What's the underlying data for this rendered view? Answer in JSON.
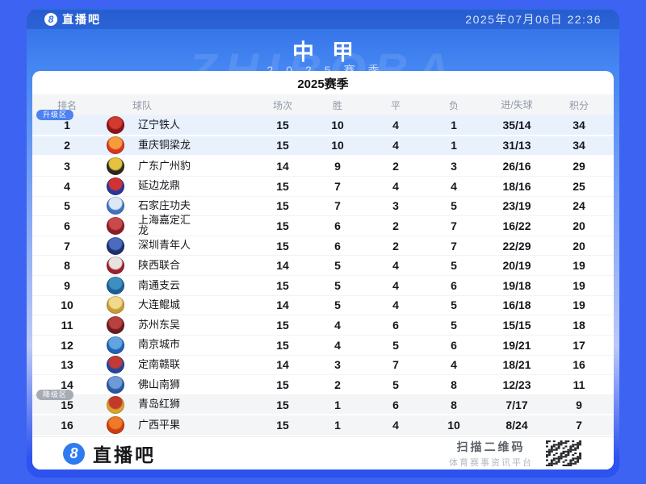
{
  "topbar": {
    "brand": "直播吧",
    "brand_glyph": "8",
    "datetime": "2025年07月06日 22:36"
  },
  "banner": {
    "title": "中甲",
    "season": "2025赛季",
    "watermark": "ZHIBOBA"
  },
  "colors": {
    "page_bg": "#3c63f1",
    "promotion_badge": "#4d82f0",
    "relegation_badge": "#a6abb4",
    "promotion_row_bg": "#e9f1fd",
    "relegation_row_bg": "#f4f5f6"
  },
  "table": {
    "title": "2025赛季",
    "columns": {
      "rank": "排名",
      "team": "球队",
      "played": "场次",
      "win": "胜",
      "draw": "平",
      "loss": "负",
      "goals": "进/失球",
      "points": "积分"
    },
    "promotion_label": "升级区",
    "relegation_label": "降级区",
    "rows": [
      {
        "rank": "1",
        "team": "辽宁铁人",
        "played": "15",
        "win": "10",
        "draw": "4",
        "loss": "1",
        "goals": "35/14",
        "points": "34",
        "zone": "promotion",
        "badge": true,
        "logo": [
          "#8f1318",
          "#d23a2e"
        ]
      },
      {
        "rank": "2",
        "team": "重庆铜梁龙",
        "played": "15",
        "win": "10",
        "draw": "4",
        "loss": "1",
        "goals": "31/13",
        "points": "34",
        "zone": "promotion",
        "badge": false,
        "logo": [
          "#d7371f",
          "#f59d3c"
        ]
      },
      {
        "rank": "3",
        "team": "广东广州豹",
        "played": "14",
        "win": "9",
        "draw": "2",
        "loss": "3",
        "goals": "26/16",
        "points": "29",
        "zone": null,
        "badge": false,
        "logo": [
          "#2b2a20",
          "#e5c33d"
        ]
      },
      {
        "rank": "4",
        "team": "延边龙鼎",
        "played": "15",
        "win": "7",
        "draw": "4",
        "loss": "4",
        "goals": "18/16",
        "points": "25",
        "zone": null,
        "badge": false,
        "logo": [
          "#27379b",
          "#cf3333"
        ]
      },
      {
        "rank": "5",
        "team": "石家庄功夫",
        "played": "15",
        "win": "7",
        "draw": "3",
        "loss": "5",
        "goals": "23/19",
        "points": "24",
        "zone": null,
        "badge": false,
        "logo": [
          "#3f74c0",
          "#dce9f5"
        ]
      },
      {
        "rank": "6",
        "team": "上海嘉定汇龙",
        "played": "15",
        "win": "6",
        "draw": "2",
        "loss": "7",
        "goals": "16/22",
        "points": "20",
        "zone": null,
        "badge": false,
        "logo": [
          "#8e1c28",
          "#c84a4a"
        ]
      },
      {
        "rank": "7",
        "team": "深圳青年人",
        "played": "15",
        "win": "6",
        "draw": "2",
        "loss": "7",
        "goals": "22/29",
        "points": "20",
        "zone": null,
        "badge": false,
        "logo": [
          "#1d2f6e",
          "#4a6bc0"
        ]
      },
      {
        "rank": "8",
        "team": "陕西联合",
        "played": "14",
        "win": "5",
        "draw": "4",
        "loss": "5",
        "goals": "20/19",
        "points": "19",
        "zone": null,
        "badge": false,
        "logo": [
          "#9c1f2e",
          "#e8e3de"
        ]
      },
      {
        "rank": "9",
        "team": "南通支云",
        "played": "15",
        "win": "5",
        "draw": "4",
        "loss": "6",
        "goals": "19/18",
        "points": "19",
        "zone": null,
        "badge": false,
        "logo": [
          "#1c5e96",
          "#3e8ec0"
        ]
      },
      {
        "rank": "10",
        "team": "大连鲲城",
        "played": "14",
        "win": "5",
        "draw": "4",
        "loss": "5",
        "goals": "16/18",
        "points": "19",
        "zone": null,
        "badge": false,
        "logo": [
          "#c99a35",
          "#f0d98a"
        ]
      },
      {
        "rank": "11",
        "team": "苏州东吴",
        "played": "15",
        "win": "4",
        "draw": "6",
        "loss": "5",
        "goals": "15/15",
        "points": "18",
        "zone": null,
        "badge": false,
        "logo": [
          "#6e1a20",
          "#b8413f"
        ]
      },
      {
        "rank": "12",
        "team": "南京城市",
        "played": "15",
        "win": "4",
        "draw": "5",
        "loss": "6",
        "goals": "19/21",
        "points": "17",
        "zone": null,
        "badge": false,
        "logo": [
          "#1f61b5",
          "#62a4e0"
        ]
      },
      {
        "rank": "13",
        "team": "定南赣联",
        "played": "14",
        "win": "3",
        "draw": "7",
        "loss": "4",
        "goals": "18/21",
        "points": "16",
        "zone": null,
        "badge": false,
        "logo": [
          "#24459c",
          "#c23a35"
        ]
      },
      {
        "rank": "14",
        "team": "佛山南狮",
        "played": "15",
        "win": "2",
        "draw": "5",
        "loss": "8",
        "goals": "12/23",
        "points": "11",
        "zone": null,
        "badge": false,
        "logo": [
          "#2a58a8",
          "#6e9bd8"
        ]
      },
      {
        "rank": "15",
        "team": "青岛红狮",
        "played": "15",
        "win": "1",
        "draw": "6",
        "loss": "8",
        "goals": "7/17",
        "points": "9",
        "zone": "relegation",
        "badge": true,
        "logo": [
          "#d8a42c",
          "#c3392b"
        ]
      },
      {
        "rank": "16",
        "team": "广西平果",
        "played": "15",
        "win": "1",
        "draw": "4",
        "loss": "10",
        "goals": "8/24",
        "points": "7",
        "zone": "relegation",
        "badge": false,
        "logo": [
          "#cc3d12",
          "#ef7a28"
        ]
      }
    ]
  },
  "footer": {
    "brand": "直播吧",
    "brand_glyph": "8",
    "scan_title": "扫描二维码",
    "scan_subtitle": "体育赛事资讯平台"
  }
}
